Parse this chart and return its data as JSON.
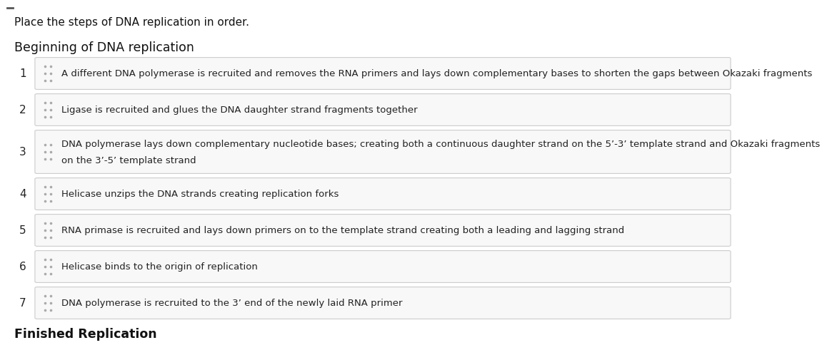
{
  "title_line": "Place the steps of DNA replication in order.",
  "subtitle": "Beginning of DNA replication",
  "footer": "Finished Replication",
  "background_color": "#ffffff",
  "steps": [
    {
      "number": "1",
      "text": "A different DNA polymerase is recruited and removes the RNA primers and lays down complementary bases to shorten the gaps between Okazaki fragments"
    },
    {
      "number": "2",
      "text": "Ligase is recruited and glues the DNA daughter strand fragments together"
    },
    {
      "number": "3",
      "text": "DNA polymerase lays down complementary nucleotide bases; creating both a continuous daughter strand on the 5’-3’ template strand and Okazaki fragments\non the 3’-5’ template strand"
    },
    {
      "number": "4",
      "text": "Helicase unzips the DNA strands creating replication forks"
    },
    {
      "number": "5",
      "text": "RNA primase is recruited and lays down primers on to the template strand creating both a leading and lagging strand"
    },
    {
      "number": "6",
      "text": "Helicase binds to the origin of replication"
    },
    {
      "number": "7",
      "text": "DNA polymerase is recruited to the 3’ end of the newly laid RNA primer"
    }
  ],
  "box_edge_color": "#cccccc",
  "box_face_color": "#f8f8f8",
  "number_color": "#222222",
  "text_color": "#222222",
  "title_color": "#111111",
  "drag_icon_color": "#aaaaaa",
  "top_border_color": "#555555"
}
